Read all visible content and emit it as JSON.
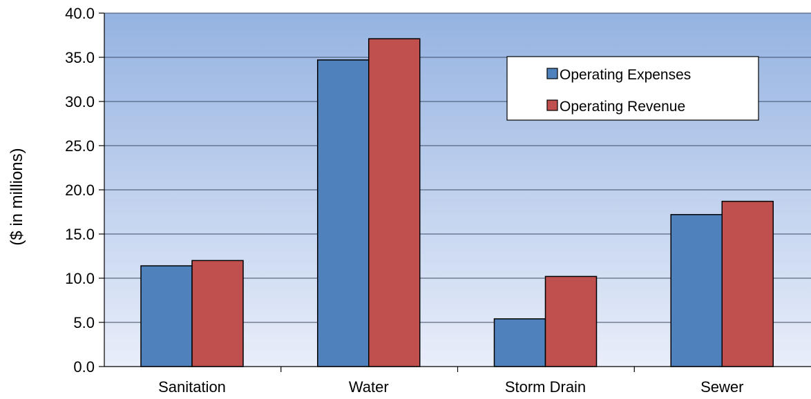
{
  "chart_data": {
    "type": "bar",
    "title": "",
    "xlabel": "",
    "ylabel": "($ in millions)",
    "ylim": [
      0,
      40
    ],
    "yticks": [
      0,
      5,
      10,
      15,
      20,
      25,
      30,
      35,
      40
    ],
    "ytick_labels": [
      "0.0",
      "5.0",
      "10.0",
      "15.0",
      "20.0",
      "25.0",
      "30.0",
      "35.0",
      "40.0"
    ],
    "categories": [
      "Sanitation",
      "Water",
      "Storm Drain",
      "Sewer"
    ],
    "series": [
      {
        "name": "Operating Expenses",
        "values": [
          11.4,
          34.7,
          5.4,
          17.2
        ],
        "color": "#4f81bd"
      },
      {
        "name": "Operating Revenue",
        "values": [
          12.0,
          37.1,
          10.2,
          18.7
        ],
        "color": "#c0504d"
      }
    ],
    "grid": true,
    "legend_position": "top-right",
    "background_gradient": [
      "#95b3e1",
      "#e9eefa"
    ]
  }
}
